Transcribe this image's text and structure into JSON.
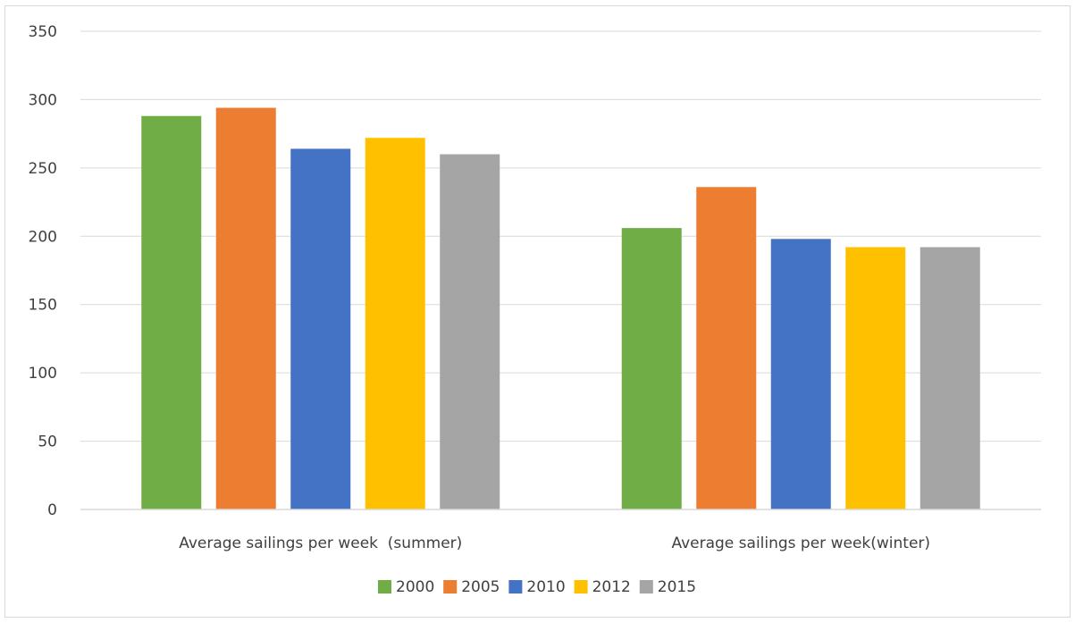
{
  "chart_data": {
    "type": "bar",
    "title": "",
    "xlabel": "",
    "ylabel": "",
    "ylim": [
      0,
      350
    ],
    "yticks": [
      0,
      50,
      100,
      150,
      200,
      250,
      300,
      350
    ],
    "grid": true,
    "legend_position": "bottom",
    "categories": [
      "Average sailings per week  (summer)",
      "Average sailings per week(winter)"
    ],
    "series": [
      {
        "name": "2000",
        "color": "#70ad47",
        "values": [
          288,
          206
        ]
      },
      {
        "name": "2005",
        "color": "#ed7d31",
        "values": [
          294,
          236
        ]
      },
      {
        "name": "2010",
        "color": "#4472c4",
        "values": [
          264,
          198
        ]
      },
      {
        "name": "2012",
        "color": "#ffc000",
        "values": [
          272,
          192
        ]
      },
      {
        "name": "2015",
        "color": "#a5a5a5",
        "values": [
          260,
          192
        ]
      }
    ]
  }
}
